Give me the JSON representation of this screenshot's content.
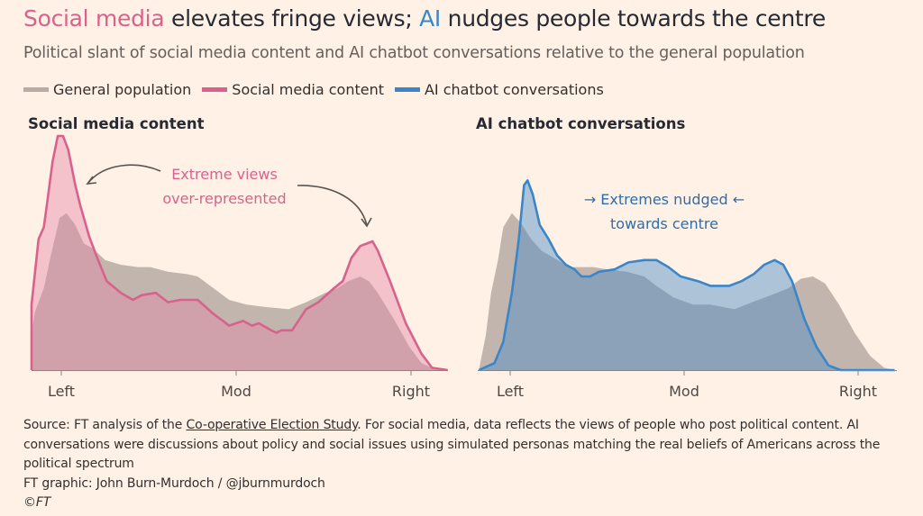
{
  "header": {
    "title_part1": "Social media",
    "title_part2": " elevates fringe views; ",
    "title_part3": "AI",
    "title_part4": " nudges people towards the centre",
    "subtitle": "Political slant of social media content and AI chatbot conversations relative to the general population"
  },
  "legend": [
    {
      "label": "General population",
      "color": "#b8aca4"
    },
    {
      "label": "Social media content",
      "color": "#d9628c"
    },
    {
      "label": "AI chatbot conversations",
      "color": "#3a86c8"
    }
  ],
  "colors": {
    "background": "#fff1e5",
    "general": "#c1b5ad",
    "social_line": "#d9628c",
    "social_fill": "#e58aa8",
    "ai_line": "#3a86c8",
    "ai_fill": "#4a8cc8"
  },
  "chart_data": [
    {
      "type": "area",
      "title": "Social media content",
      "xticks": [
        {
          "value": -1,
          "label": "Left"
        },
        {
          "value": 0,
          "label": "Mod"
        },
        {
          "value": 1,
          "label": "Right"
        }
      ],
      "xlim": [
        -1.2,
        1.22
      ],
      "annotation": [
        "Extreme views",
        "over-represented"
      ],
      "series": [
        {
          "name": "General population",
          "x": [
            -1.17,
            -1.17,
            -1.15,
            -1.1,
            -1.06,
            -1.01,
            -0.97,
            -0.92,
            -0.87,
            -0.82,
            -0.75,
            -0.66,
            -0.56,
            -0.49,
            -0.39,
            -0.28,
            -0.22,
            -0.13,
            -0.04,
            0.06,
            0.16,
            0.3,
            0.4,
            0.51,
            0.58,
            0.64,
            0.71,
            0.76,
            0.81,
            0.9,
            0.99,
            1.06,
            1.12,
            1.21
          ],
          "y": [
            0,
            0.16,
            0.25,
            0.35,
            0.49,
            0.65,
            0.67,
            0.62,
            0.54,
            0.52,
            0.47,
            0.45,
            0.44,
            0.44,
            0.42,
            0.41,
            0.4,
            0.35,
            0.3,
            0.28,
            0.27,
            0.26,
            0.29,
            0.33,
            0.35,
            0.38,
            0.4,
            0.38,
            0.33,
            0.22,
            0.1,
            0.03,
            0.01,
            0
          ]
        },
        {
          "name": "Social media content",
          "x": [
            -1.17,
            -1.17,
            -1.13,
            -1.1,
            -1.08,
            -1.05,
            -1.02,
            -0.99,
            -0.96,
            -0.92,
            -0.89,
            -0.84,
            -0.8,
            -0.74,
            -0.66,
            -0.59,
            -0.54,
            -0.46,
            -0.39,
            -0.32,
            -0.22,
            -0.13,
            -0.04,
            0.04,
            0.09,
            0.13,
            0.2,
            0.23,
            0.26,
            0.32,
            0.4,
            0.47,
            0.56,
            0.61,
            0.66,
            0.71,
            0.78,
            0.81,
            0.88,
            0.97,
            1.06,
            1.12,
            1.21
          ],
          "y": [
            0,
            0.28,
            0.56,
            0.61,
            0.72,
            0.89,
            1.0,
            1.0,
            0.94,
            0.79,
            0.7,
            0.57,
            0.49,
            0.38,
            0.33,
            0.3,
            0.32,
            0.33,
            0.29,
            0.3,
            0.3,
            0.24,
            0.19,
            0.21,
            0.19,
            0.2,
            0.17,
            0.16,
            0.17,
            0.17,
            0.26,
            0.29,
            0.35,
            0.38,
            0.48,
            0.53,
            0.55,
            0.51,
            0.38,
            0.2,
            0.07,
            0.01,
            0
          ]
        }
      ]
    },
    {
      "type": "area",
      "title": "AI chatbot conversations",
      "xticks": [
        {
          "value": -1,
          "label": "Left"
        },
        {
          "value": 0,
          "label": "Mod"
        },
        {
          "value": 1,
          "label": "Right"
        }
      ],
      "xlim": [
        -1.2,
        1.22
      ],
      "annotation": [
        "→ Extremes nudged ←",
        "towards centre"
      ],
      "series": [
        {
          "name": "General population",
          "x": [
            -1.18,
            -1.14,
            -1.11,
            -1.07,
            -1.04,
            -0.99,
            -0.94,
            -0.88,
            -0.82,
            -0.75,
            -0.66,
            -0.57,
            -0.52,
            -0.44,
            -0.33,
            -0.23,
            -0.16,
            -0.06,
            0.05,
            0.15,
            0.29,
            0.39,
            0.5,
            0.6,
            0.67,
            0.74,
            0.81,
            0.89,
            0.98,
            1.07,
            1.15,
            1.21
          ],
          "y": [
            0,
            0.15,
            0.33,
            0.47,
            0.61,
            0.67,
            0.63,
            0.56,
            0.51,
            0.48,
            0.44,
            0.44,
            0.44,
            0.43,
            0.42,
            0.4,
            0.36,
            0.31,
            0.28,
            0.28,
            0.26,
            0.29,
            0.32,
            0.35,
            0.39,
            0.4,
            0.37,
            0.28,
            0.16,
            0.06,
            0.01,
            0
          ]
        },
        {
          "name": "AI chatbot conversations",
          "x": [
            -1.18,
            -1.09,
            -1.04,
            -0.99,
            -0.95,
            -0.92,
            -0.9,
            -0.87,
            -0.83,
            -0.78,
            -0.73,
            -0.68,
            -0.63,
            -0.59,
            -0.54,
            -0.49,
            -0.4,
            -0.32,
            -0.23,
            -0.16,
            -0.09,
            -0.02,
            0.08,
            0.15,
            0.26,
            0.33,
            0.4,
            0.46,
            0.52,
            0.57,
            0.62,
            0.69,
            0.76,
            0.83,
            0.9,
            1.21
          ],
          "y": [
            0,
            0.03,
            0.12,
            0.33,
            0.56,
            0.79,
            0.81,
            0.75,
            0.62,
            0.56,
            0.49,
            0.45,
            0.43,
            0.4,
            0.4,
            0.42,
            0.43,
            0.46,
            0.47,
            0.47,
            0.44,
            0.4,
            0.38,
            0.36,
            0.36,
            0.38,
            0.41,
            0.45,
            0.47,
            0.45,
            0.38,
            0.22,
            0.1,
            0.02,
            0,
            0
          ]
        }
      ]
    }
  ],
  "footer": {
    "source_prefix": "Source: FT analysis of the ",
    "source_link": "Co-operative Election Study",
    "source_rest": ". For social media, data reflects the views of people who post political content. AI conversations were discussions about policy and social issues using simulated personas matching the real beliefs of Americans across the political spectrum",
    "credit": "FT graphic: John Burn-Murdoch / @jburnmurdoch",
    "copyright": "©FT"
  }
}
